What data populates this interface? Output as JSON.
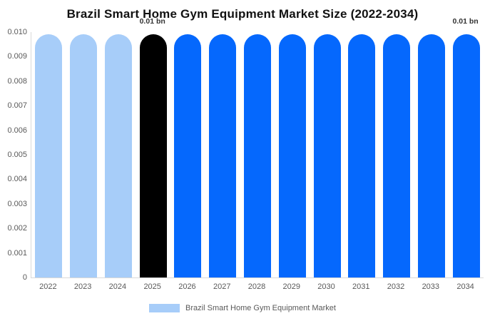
{
  "title": "Brazil Smart Home Gym Equipment Market Size (2022-2034)",
  "legend": {
    "label": "Brazil Smart Home Gym Equipment Market",
    "swatch_color": "#a7cdf9"
  },
  "colors": {
    "historical_bar": "#a7cdf9",
    "base_year_bar": "#000000",
    "forecast_bar": "#0568fd",
    "axis_line": "#d9d9d9",
    "tick_label": "#595959",
    "annotation_text": "#333333",
    "title_text": "#111111",
    "background": "#ffffff"
  },
  "chart_data": {
    "type": "bar",
    "title": "Brazil Smart Home Gym Equipment Market Size (2022-2034)",
    "xlabel": "",
    "ylabel": "",
    "unit": "bn",
    "categories": [
      "2022",
      "2023",
      "2024",
      "2025",
      "2026",
      "2027",
      "2028",
      "2029",
      "2030",
      "2031",
      "2032",
      "2033",
      "2034"
    ],
    "series": [
      {
        "name": "Brazil Smart Home Gym Equipment Market",
        "values": [
          0.01,
          0.01,
          0.01,
          0.01,
          0.01,
          0.01,
          0.01,
          0.01,
          0.01,
          0.01,
          0.01,
          0.01,
          0.01
        ]
      }
    ],
    "bar_colors": [
      "#a7cdf9",
      "#a7cdf9",
      "#a7cdf9",
      "#000000",
      "#0568fd",
      "#0568fd",
      "#0568fd",
      "#0568fd",
      "#0568fd",
      "#0568fd",
      "#0568fd",
      "#0568fd",
      "#0568fd"
    ],
    "ylim": [
      0,
      0.01
    ],
    "yticks": [
      0,
      0.001,
      0.002,
      0.003,
      0.004,
      0.005,
      0.006,
      0.007,
      0.008,
      0.009,
      0.01
    ],
    "ytick_labels": [
      "0",
      "0.001",
      "0.002",
      "0.003",
      "0.004",
      "0.005",
      "0.006",
      "0.007",
      "0.008",
      "0.009",
      "0.010"
    ],
    "grid": false,
    "legend_position": "bottom",
    "annotations": [
      {
        "text": "0.01 bn",
        "bar": "2025",
        "position": "above-bar"
      },
      {
        "text": "0.01 bn",
        "bar": "2034",
        "position": "above-bar"
      }
    ]
  }
}
